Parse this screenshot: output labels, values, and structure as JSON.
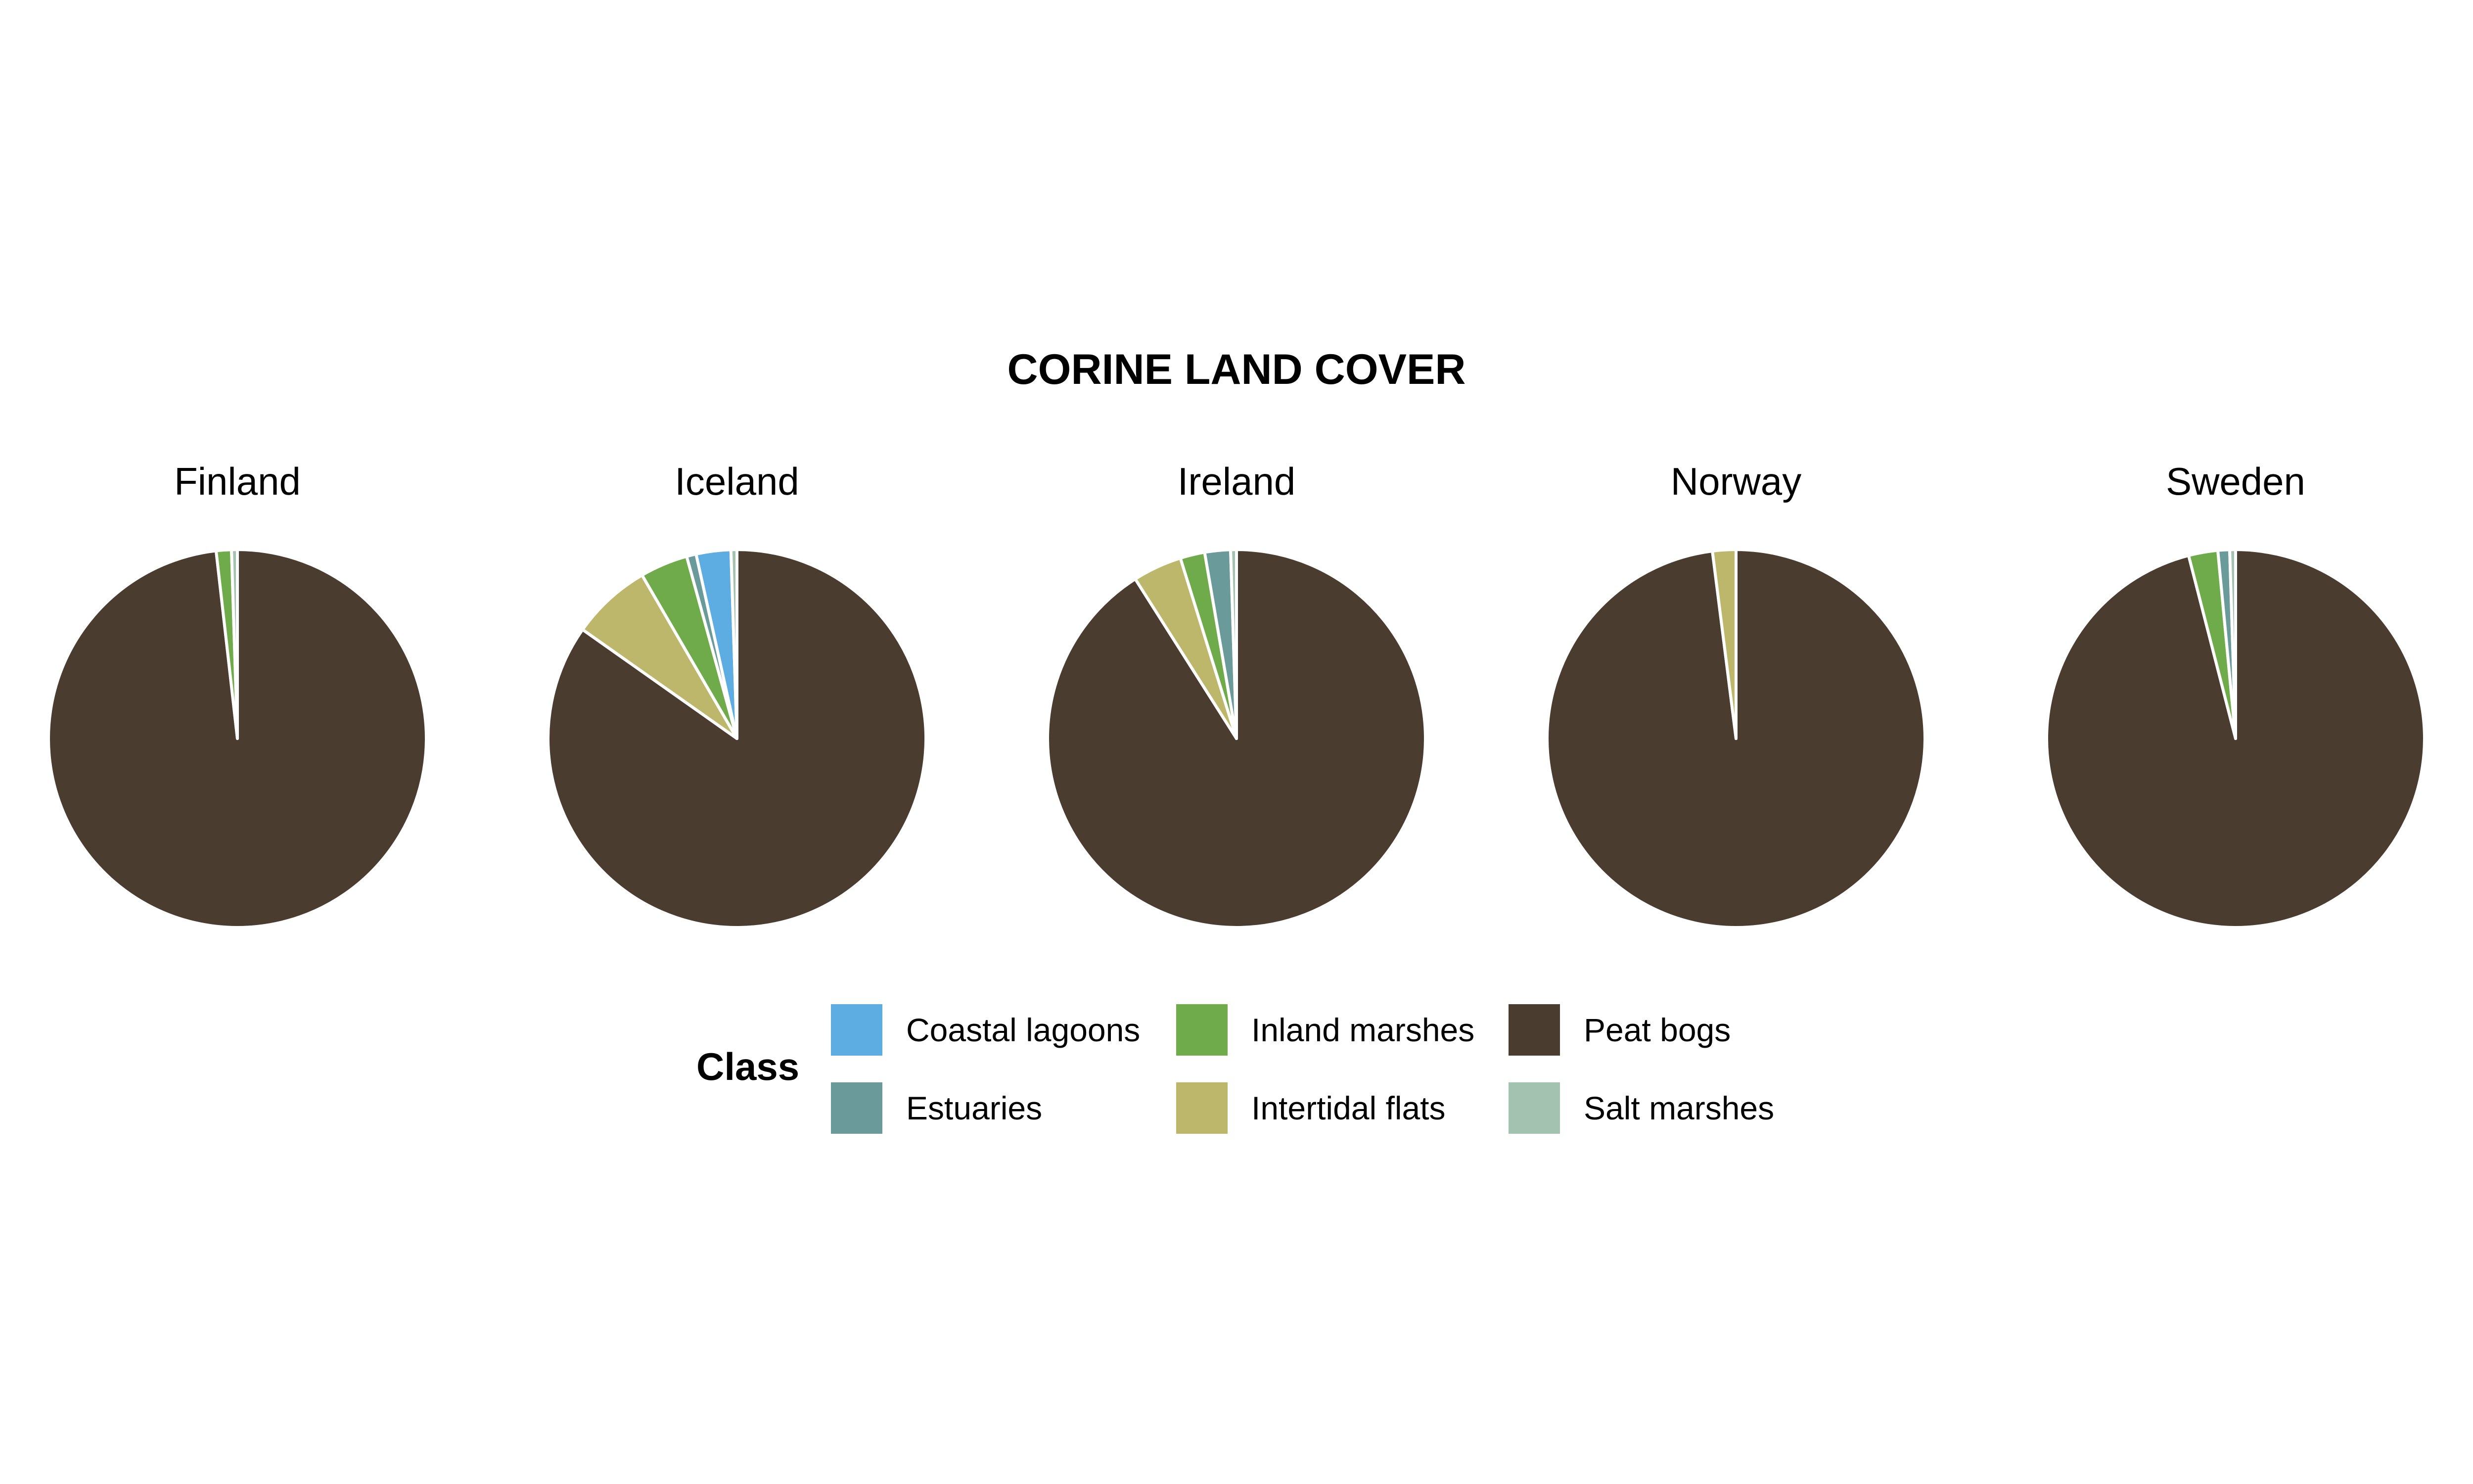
{
  "chart_data": {
    "type": "pie",
    "title": "CORINE LAND COVER",
    "legend": {
      "title": "Class",
      "placement": "bottom",
      "entries": [
        {
          "name": "Coastal lagoons",
          "color": "#5dade2"
        },
        {
          "name": "Estuaries",
          "color": "#6b9a9a"
        },
        {
          "name": "Inland marshes",
          "color": "#6fab4a"
        },
        {
          "name": "Intertidal flats",
          "color": "#bdb76b"
        },
        {
          "name": "Peat bogs",
          "color": "#4a3c2e"
        },
        {
          "name": "Salt marshes",
          "color": "#a3c2af"
        }
      ]
    },
    "facets": [
      {
        "name": "Finland",
        "slices": [
          {
            "class": "Peat bogs",
            "value": 98.2
          },
          {
            "class": "Inland marshes",
            "value": 1.3
          },
          {
            "class": "Salt marshes",
            "value": 0.5
          }
        ]
      },
      {
        "name": "Iceland",
        "slices": [
          {
            "class": "Peat bogs",
            "value": 83.0
          },
          {
            "class": "Intertidal flats",
            "value": 6.7
          },
          {
            "class": "Inland marshes",
            "value": 4.0
          },
          {
            "class": "Estuaries",
            "value": 0.8
          },
          {
            "class": "Coastal lagoons",
            "value": 2.9
          },
          {
            "class": "Salt marshes",
            "value": 0.5
          }
        ]
      },
      {
        "name": "Ireland",
        "slices": [
          {
            "class": "Peat bogs",
            "value": 91.0
          },
          {
            "class": "Intertidal flats",
            "value": 4.2
          },
          {
            "class": "Inland marshes",
            "value": 2.1
          },
          {
            "class": "Estuaries",
            "value": 2.2
          },
          {
            "class": "Salt marshes",
            "value": 0.5
          }
        ]
      },
      {
        "name": "Norway",
        "slices": [
          {
            "class": "Peat bogs",
            "value": 98.0
          },
          {
            "class": "Intertidal flats",
            "value": 2.0
          }
        ]
      },
      {
        "name": "Sweden",
        "slices": [
          {
            "class": "Peat bogs",
            "value": 96.0
          },
          {
            "class": "Inland marshes",
            "value": 2.5
          },
          {
            "class": "Estuaries",
            "value": 1.0
          },
          {
            "class": "Salt marshes",
            "value": 0.5
          }
        ]
      }
    ]
  }
}
